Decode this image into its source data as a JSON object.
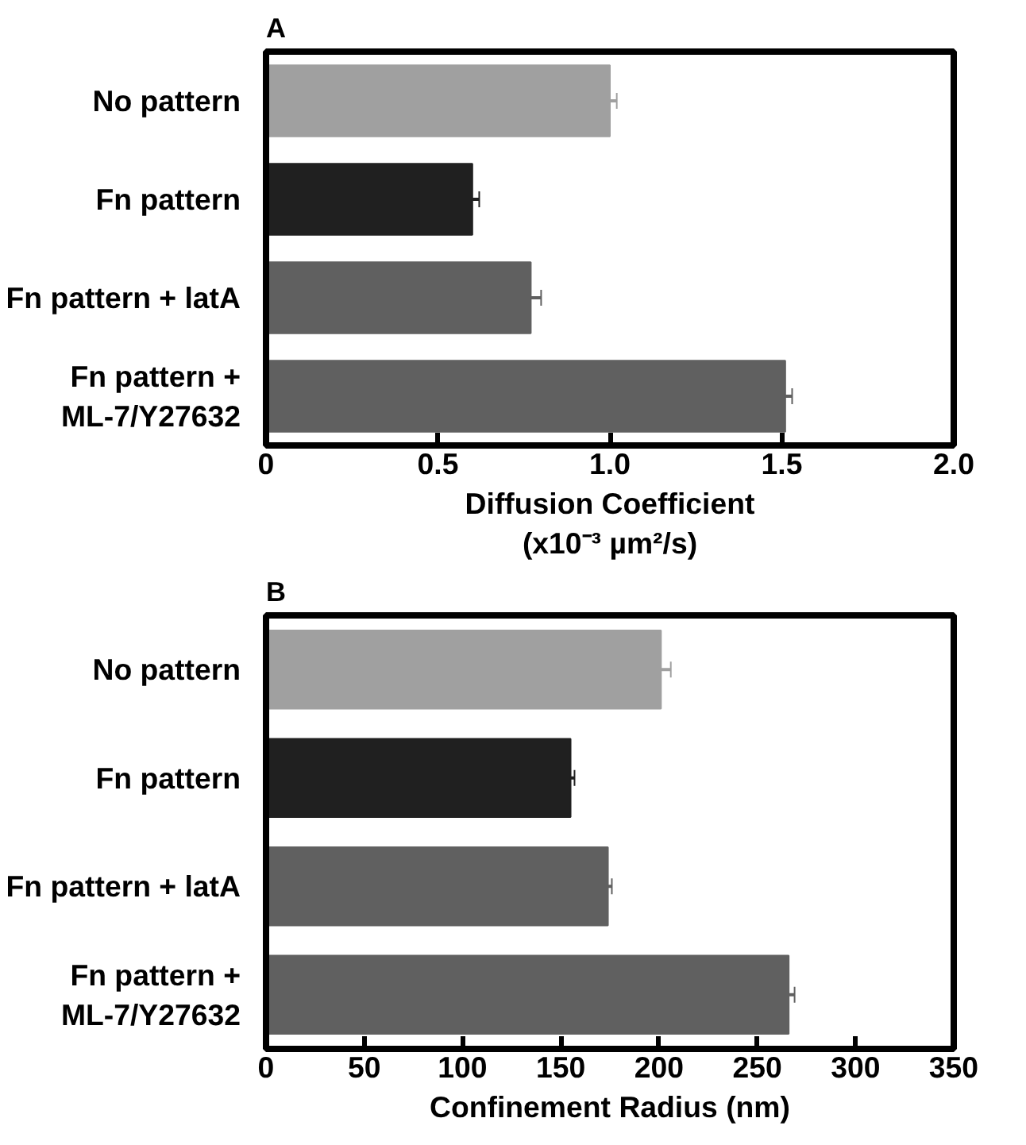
{
  "chart_data": [
    {
      "type": "bar",
      "orientation": "horizontal",
      "title": "A",
      "categories": [
        "No pattern",
        "Fn pattern",
        "Fn pattern + latA",
        "Fn pattern +\nML-7/Y27632"
      ],
      "values": [
        1.0,
        0.6,
        0.77,
        1.51
      ],
      "colors": [
        "#a0a0a0",
        "#202020",
        "#606060",
        "#606060"
      ],
      "errors": [
        0.02,
        0.02,
        0.03,
        0.02
      ],
      "xlabel": "Diffusion Coefficient\n(x10⁻³ µm²/s)",
      "xlim": [
        0,
        2.0
      ],
      "xticks": [
        0,
        {
          "value": 0.5,
          "label": "0.5"
        },
        {
          "value": 1.0,
          "label": "1.0"
        },
        {
          "value": 1.5,
          "label": "1.5"
        },
        {
          "value": 2.0,
          "label": "2.0"
        }
      ],
      "grid": false
    },
    {
      "type": "bar",
      "orientation": "horizontal",
      "title": "B",
      "categories": [
        "No pattern",
        "Fn pattern",
        "Fn pattern + latA",
        "Fn pattern +\nML-7/Y27632"
      ],
      "values": [
        201,
        155,
        174,
        266
      ],
      "colors": [
        "#a0a0a0",
        "#202020",
        "#606060",
        "#606060"
      ],
      "errors": [
        5,
        2,
        2,
        3
      ],
      "xlabel": "Confinement Radius (nm)",
      "xlim": [
        0,
        350
      ],
      "xticks": [
        0,
        50,
        100,
        150,
        200,
        250,
        300,
        350
      ],
      "grid": false
    }
  ]
}
